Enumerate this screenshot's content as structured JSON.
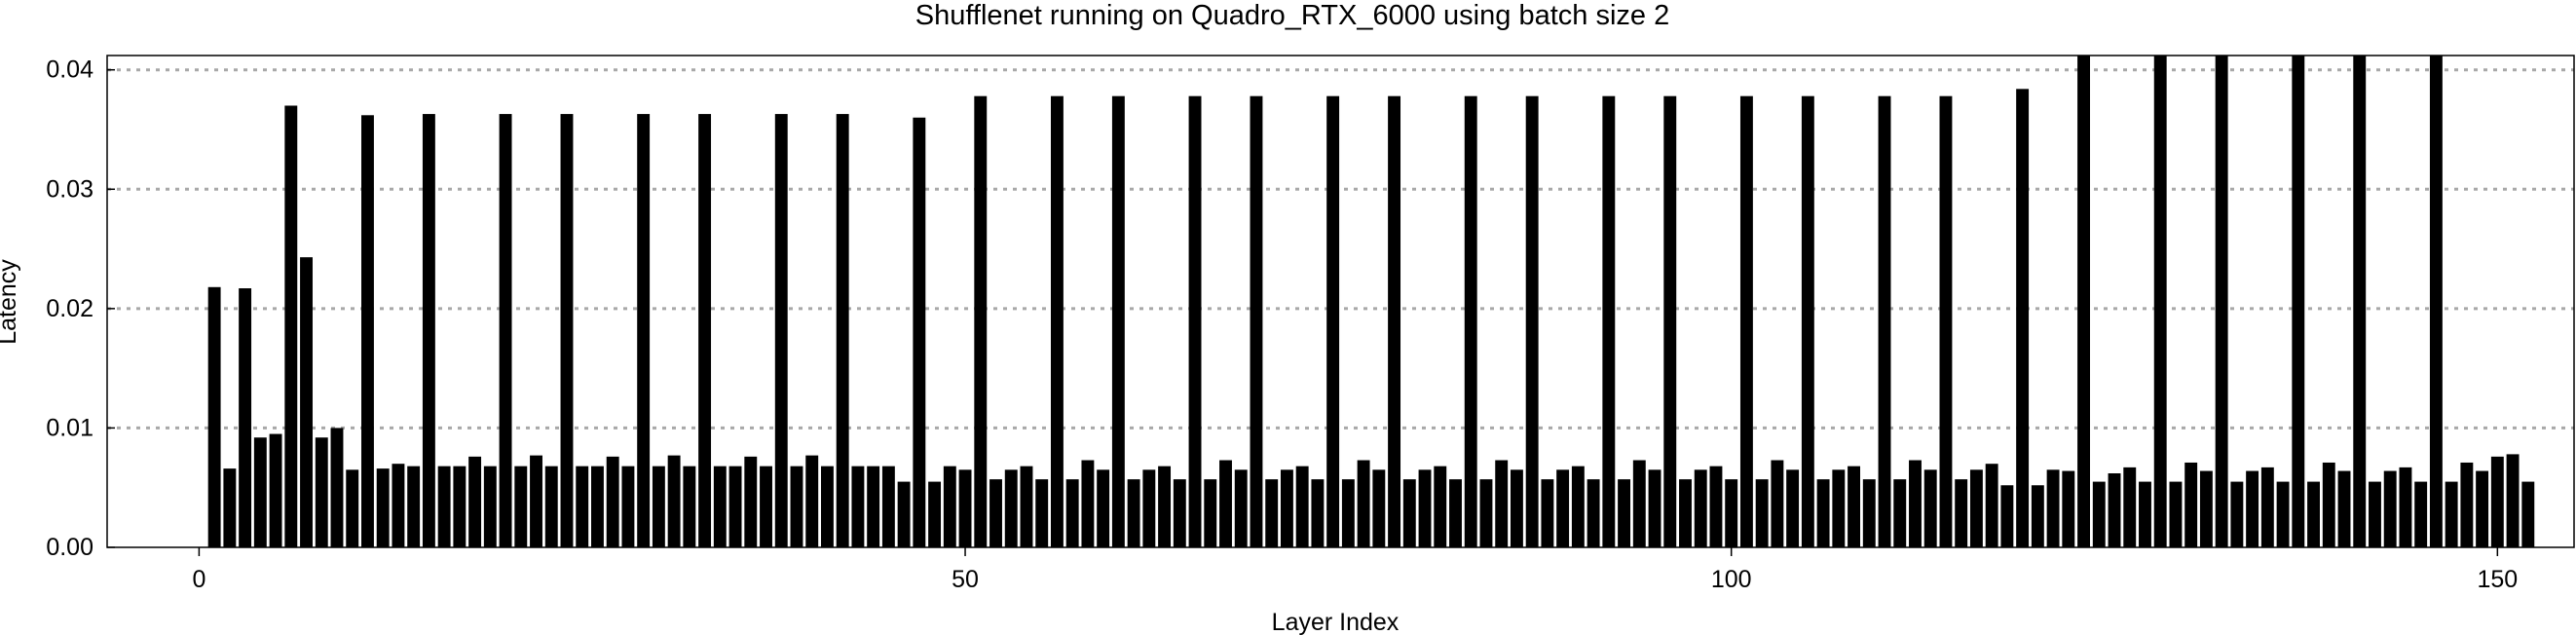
{
  "chart_data": {
    "type": "bar",
    "title": "Shufflenet running on Quadro_RTX_6000 using batch size 2",
    "xlabel": "Layer Index",
    "ylabel": "Latency",
    "xlim": [
      -6,
      155
    ],
    "ylim": [
      0,
      0.0412
    ],
    "grid": {
      "y": true,
      "x": false,
      "style": "dotted"
    },
    "x_ticks": [
      0,
      50,
      100,
      150
    ],
    "y_ticks": [
      0.0,
      0.01,
      0.02,
      0.03,
      0.04
    ],
    "x_tick_labels": [
      "0",
      "50",
      "100",
      "150"
    ],
    "y_tick_labels": [
      "0.00",
      "0.01",
      "0.02",
      "0.03",
      "0.04"
    ],
    "bar_color": "#000000",
    "x": [
      0,
      1,
      2,
      3,
      4,
      5,
      6,
      7,
      8,
      9,
      10,
      11,
      12,
      13,
      14,
      15,
      16,
      17,
      18,
      19,
      20,
      21,
      22,
      23,
      24,
      25,
      26,
      27,
      28,
      29,
      30,
      31,
      32,
      33,
      34,
      35,
      36,
      37,
      38,
      39,
      40,
      41,
      42,
      43,
      44,
      45,
      46,
      47,
      48,
      49,
      50,
      51,
      52,
      53,
      54,
      55,
      56,
      57,
      58,
      59,
      60,
      61,
      62,
      63,
      64,
      65,
      66,
      67,
      68,
      69,
      70,
      71,
      72,
      73,
      74,
      75,
      76,
      77,
      78,
      79,
      80,
      81,
      82,
      83,
      84,
      85,
      86,
      87,
      88,
      89,
      90,
      91,
      92,
      93,
      94,
      95,
      96,
      97,
      98,
      99,
      100,
      101,
      102,
      103,
      104,
      105,
      106,
      107,
      108,
      109,
      110,
      111,
      112,
      113,
      114,
      115,
      116,
      117,
      118,
      119,
      120,
      121,
      122,
      123,
      124,
      125,
      126,
      127,
      128,
      129,
      130,
      131,
      132,
      133,
      134,
      135,
      136,
      137,
      138,
      139,
      140,
      141,
      142,
      143,
      144,
      145,
      146,
      147,
      148,
      149,
      150,
      151,
      152
    ],
    "values": [
      0.0,
      0.0218,
      0.0066,
      0.0217,
      0.0092,
      0.0095,
      0.037,
      0.0243,
      0.0092,
      0.01,
      0.0065,
      0.0362,
      0.0066,
      0.007,
      0.0068,
      0.0363,
      0.0068,
      0.0068,
      0.0076,
      0.0068,
      0.0363,
      0.0068,
      0.0077,
      0.0068,
      0.0363,
      0.0068,
      0.0068,
      0.0076,
      0.0068,
      0.0363,
      0.0068,
      0.0077,
      0.0068,
      0.0363,
      0.0068,
      0.0068,
      0.0076,
      0.0068,
      0.0363,
      0.0068,
      0.0077,
      0.0068,
      0.0363,
      0.0068,
      0.0068,
      0.0068,
      0.0055,
      0.036,
      0.0055,
      0.0068,
      0.0065,
      0.0378,
      0.0057,
      0.0065,
      0.0068,
      0.0057,
      0.0378,
      0.0057,
      0.0073,
      0.0065,
      0.0378,
      0.0057,
      0.0065,
      0.0068,
      0.0057,
      0.0378,
      0.0057,
      0.0073,
      0.0065,
      0.0378,
      0.0057,
      0.0065,
      0.0068,
      0.0057,
      0.0378,
      0.0057,
      0.0073,
      0.0065,
      0.0378,
      0.0057,
      0.0065,
      0.0068,
      0.0057,
      0.0378,
      0.0057,
      0.0073,
      0.0065,
      0.0378,
      0.0057,
      0.0065,
      0.0068,
      0.0057,
      0.0378,
      0.0057,
      0.0073,
      0.0065,
      0.0378,
      0.0057,
      0.0065,
      0.0068,
      0.0057,
      0.0378,
      0.0057,
      0.0073,
      0.0065,
      0.0378,
      0.0057,
      0.0065,
      0.0068,
      0.0057,
      0.0378,
      0.0057,
      0.0073,
      0.0065,
      0.0378,
      0.0057,
      0.0065,
      0.007,
      0.0052,
      0.0384,
      0.0052,
      0.0065,
      0.0064,
      0.0412,
      0.0055,
      0.0062,
      0.0067,
      0.0055,
      0.0412,
      0.0055,
      0.0071,
      0.0064,
      0.0412,
      0.0055,
      0.0064,
      0.0067,
      0.0055,
      0.0412,
      0.0055,
      0.0071,
      0.0064,
      0.0412,
      0.0055,
      0.0064,
      0.0067,
      0.0055,
      0.0412,
      0.0055,
      0.0071,
      0.0064,
      0.0076,
      0.0078,
      0.0055
    ]
  }
}
